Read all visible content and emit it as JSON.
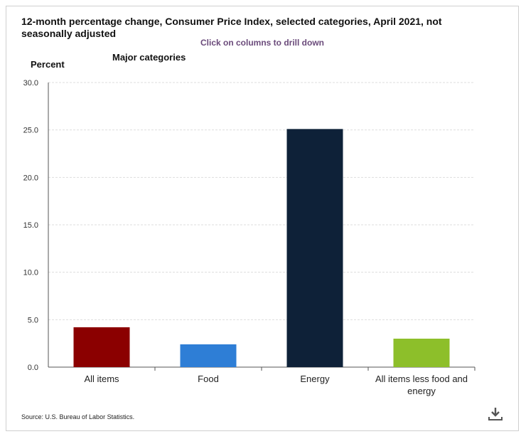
{
  "chart_data": {
    "type": "bar",
    "title": "12-month percentage change, Consumer Price Index, selected categories, April 2021, not seasonally adjusted",
    "subtitle": "Click on columns to drill down",
    "group_label": "Major categories",
    "ylabel": "Percent",
    "ylim": [
      0,
      30
    ],
    "yticks": [
      "0.0",
      "5.0",
      "10.0",
      "15.0",
      "20.0",
      "25.0",
      "30.0"
    ],
    "categories": [
      [
        "All items"
      ],
      [
        "Food"
      ],
      [
        "Energy"
      ],
      [
        "All items less food and",
        "energy"
      ]
    ],
    "values": [
      4.2,
      2.4,
      25.1,
      3.0
    ],
    "colors": [
      "#8b0000",
      "#2e7ed6",
      "#0e2138",
      "#8dbf2a"
    ],
    "source": "Source: U.S. Bureau of Labor Statistics."
  },
  "icons": {
    "download": "download-icon"
  }
}
